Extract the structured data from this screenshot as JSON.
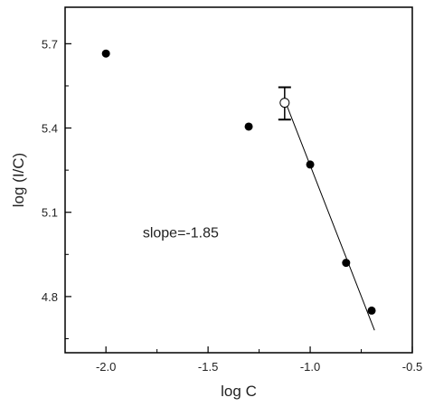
{
  "chart_data": {
    "type": "scatter",
    "xlabel": "log C",
    "ylabel": "log (I/C)",
    "xlim": [
      -2.2,
      -0.5
    ],
    "ylim": [
      4.6,
      5.83
    ],
    "xticks": [
      -2.0,
      -1.5,
      -1.0,
      -0.5
    ],
    "yticks": [
      4.8,
      5.1,
      5.4,
      5.7
    ],
    "xtick_labels": [
      "-2.0",
      "-1.5",
      "-1.0",
      "-0.5"
    ],
    "ytick_labels": [
      "4.8",
      "5.1",
      "5.4",
      "5.7"
    ],
    "grid": false,
    "series": [
      {
        "marker": "filled-circle",
        "points": [
          {
            "x": -2.0,
            "y": 5.665
          },
          {
            "x": -1.301,
            "y": 5.405
          },
          {
            "x": -1.0,
            "y": 5.27
          },
          {
            "x": -0.824,
            "y": 4.92
          },
          {
            "x": -0.699,
            "y": 4.75
          }
        ]
      },
      {
        "marker": "open-circle",
        "points": [
          {
            "x": -1.125,
            "y": 5.49,
            "error_low": 5.43,
            "error_high": 5.545
          }
        ]
      }
    ],
    "fit_line": {
      "x1": -1.125,
      "y1": 5.5,
      "x2": -0.685,
      "y2": 4.68,
      "slope": -1.85
    },
    "annotations": [
      {
        "text": "slope=-1.85",
        "x": -1.82,
        "y": 5.01
      }
    ]
  }
}
